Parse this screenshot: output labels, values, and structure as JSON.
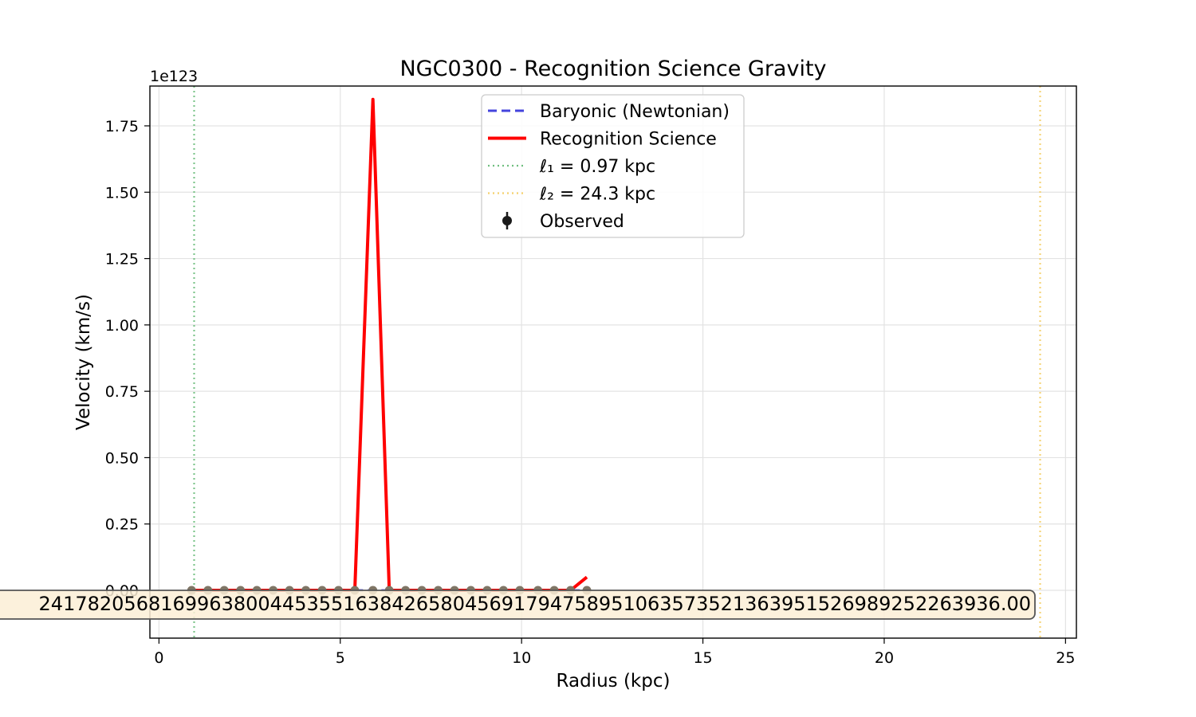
{
  "chart_data": {
    "type": "line",
    "title": "NGC0300 - Recognition Science Gravity",
    "xlabel": "Radius (kpc)",
    "ylabel": "Velocity (km/s)",
    "y_offset_label": "1e123",
    "xlim": [
      -0.25,
      25.3
    ],
    "ylim": [
      -0.18,
      1.9
    ],
    "x_ticks": [
      0,
      5,
      10,
      15,
      20,
      25
    ],
    "x_tick_labels": [
      "0",
      "5",
      "10",
      "15",
      "20",
      "25"
    ],
    "y_ticks": [
      0.0,
      0.25,
      0.5,
      0.75,
      1.0,
      1.25,
      1.5,
      1.75
    ],
    "y_tick_labels": [
      "0.00",
      "0.25",
      "0.50",
      "0.75",
      "1.00",
      "1.25",
      "1.50",
      "1.75"
    ],
    "grid": true,
    "legend_position": "upper center",
    "series": [
      {
        "name": "Baryonic (Newtonian)",
        "style": "dashed",
        "color": "#4444dd",
        "x": [
          0.9,
          1.35,
          1.8,
          2.25,
          2.7,
          3.15,
          3.6,
          4.05,
          4.5,
          4.95,
          5.4,
          5.9,
          6.35,
          6.8,
          7.25,
          7.7,
          8.15,
          8.6,
          9.05,
          9.5,
          9.95,
          10.45,
          10.9,
          11.35,
          11.8
        ],
        "values": [
          0,
          0,
          0,
          0,
          0,
          0,
          0,
          0,
          0,
          0,
          0,
          0,
          0,
          0,
          0,
          0,
          0,
          0,
          0,
          0,
          0,
          0,
          0,
          0,
          0
        ]
      },
      {
        "name": "Recognition Science",
        "style": "solid",
        "color": "#ff0000",
        "x": [
          0.9,
          1.35,
          1.8,
          2.25,
          2.7,
          3.15,
          3.6,
          4.05,
          4.5,
          4.95,
          5.4,
          5.9,
          6.35,
          6.8,
          7.25,
          7.7,
          8.15,
          8.6,
          9.05,
          9.5,
          9.95,
          10.45,
          10.9,
          11.35,
          11.8
        ],
        "values": [
          0,
          0,
          0,
          0,
          0,
          0,
          0,
          0,
          0,
          0,
          0,
          1.85,
          0,
          0,
          0,
          0,
          0,
          0,
          0,
          0,
          0,
          0,
          0,
          0,
          0.05
        ]
      },
      {
        "name": "ℓ₁ = 0.97 kpc",
        "type": "vline",
        "style": "dotted",
        "color": "#6fbf7f",
        "x": 0.97
      },
      {
        "name": "ℓ₂ = 24.3 kpc",
        "type": "vline",
        "style": "dotted",
        "color": "#f5d06a",
        "x": 24.3
      },
      {
        "name": "Observed",
        "type": "errorbar",
        "color": "#1a1a1a",
        "x": [
          0.9,
          1.35,
          1.8,
          2.25,
          2.7,
          3.15,
          3.6,
          4.05,
          4.5,
          4.95,
          5.4,
          5.9,
          6.35,
          6.8,
          7.25,
          7.7,
          8.15,
          8.6,
          9.05,
          9.5,
          9.95,
          10.45,
          10.9,
          11.35,
          11.8
        ],
        "values": [
          0,
          0,
          0,
          0,
          0,
          0,
          0,
          0,
          0,
          0,
          0,
          0,
          0,
          0,
          0,
          0,
          0,
          0,
          0,
          0,
          0,
          0,
          0,
          0,
          0
        ]
      }
    ],
    "annotation": {
      "text": "24178205681699638004453551638426580456917947589510635735213639515269892522639‍36.00",
      "box_color": "#fbefd6",
      "edge_color": "#555555"
    }
  }
}
